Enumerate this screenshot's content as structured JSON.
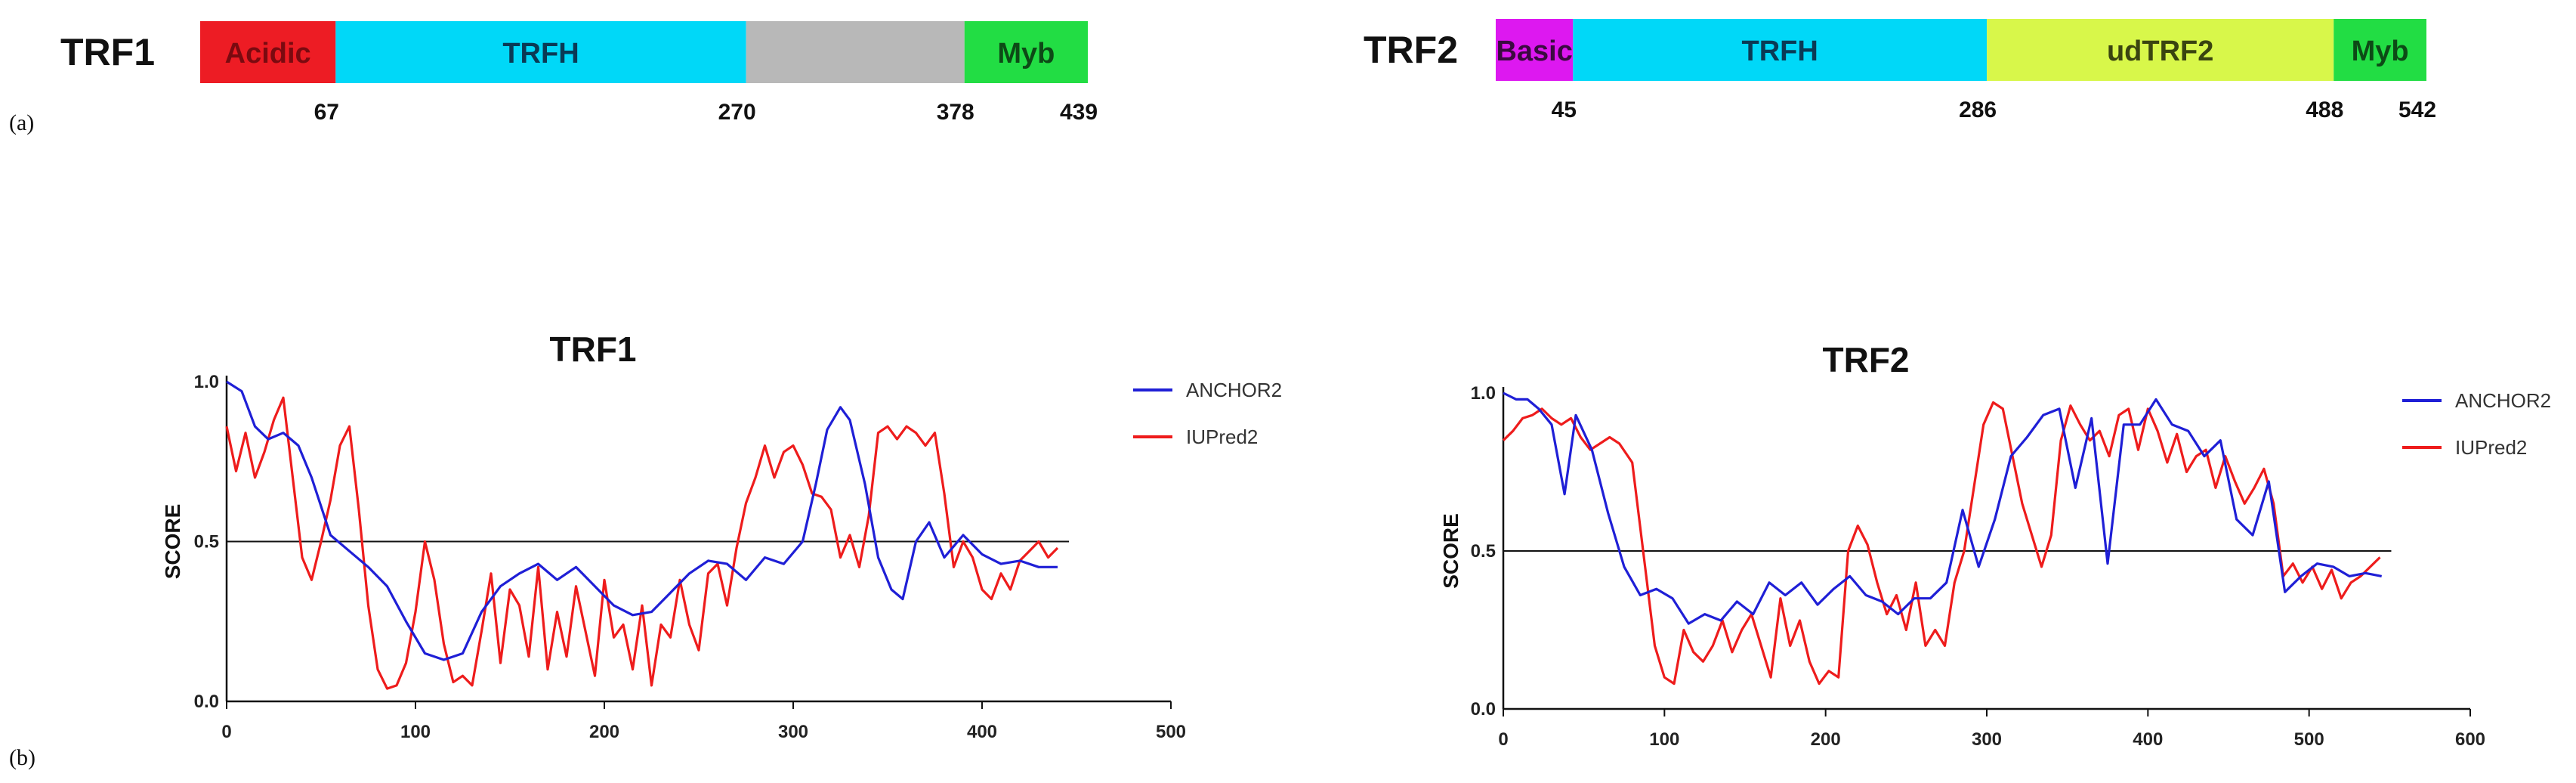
{
  "panel_labels": {
    "a": "(a)",
    "b": "(b)"
  },
  "colors": {
    "anchor": "#1f1fd6",
    "iupred": "#ee1c1c"
  },
  "domains": [
    {
      "protein": "TRF1",
      "length": 439,
      "segments": [
        {
          "label": "Acidic",
          "start": 0,
          "end": 67,
          "color": "#ed1c24",
          "text_color": "#7a0a10"
        },
        {
          "label": "TRFH",
          "start": 67,
          "end": 270,
          "color": "#00d8f8",
          "text_color": "#0a3a55"
        },
        {
          "label": "",
          "start": 270,
          "end": 378,
          "color": "#b8b8b8",
          "text_color": "#333333"
        },
        {
          "label": "Myb",
          "start": 378,
          "end": 439,
          "color": "#22dd44",
          "text_color": "#0d4a16"
        }
      ],
      "boundaries": [
        "67",
        "270",
        "378",
        "439"
      ]
    },
    {
      "protein": "TRF2",
      "length": 542,
      "segments": [
        {
          "label": "Basic",
          "start": 0,
          "end": 45,
          "color": "#dd18f0",
          "text_color": "#3a0a40"
        },
        {
          "label": "TRFH",
          "start": 45,
          "end": 286,
          "color": "#00d8f8",
          "text_color": "#0a3a55"
        },
        {
          "label": "udTRF2",
          "start": 286,
          "end": 488,
          "color": "#d8f74a",
          "text_color": "#3a4410"
        },
        {
          "label": "Myb",
          "start": 488,
          "end": 542,
          "color": "#22dd44",
          "text_color": "#0d4a16"
        }
      ],
      "boundaries": [
        "45",
        "286",
        "488",
        "542"
      ]
    }
  ],
  "chart_data": [
    {
      "type": "line",
      "title": "TRF1",
      "xlabel": "",
      "ylabel": "SCORE",
      "xlim": [
        0,
        500
      ],
      "ylim": [
        0,
        1
      ],
      "x_ticks": [
        "0",
        "100",
        "200",
        "300",
        "400",
        "500"
      ],
      "y_ticks": [
        "0.0",
        "0.5",
        "1.0"
      ],
      "threshold": 0.5,
      "legend": "top-right",
      "series": [
        {
          "name": "ANCHOR2",
          "x": [
            0,
            8,
            15,
            22,
            30,
            38,
            45,
            55,
            65,
            75,
            85,
            95,
            105,
            115,
            125,
            135,
            145,
            155,
            165,
            175,
            185,
            195,
            205,
            215,
            225,
            235,
            245,
            255,
            265,
            275,
            285,
            295,
            305,
            312,
            318,
            325,
            330,
            338,
            345,
            352,
            358,
            365,
            372,
            380,
            390,
            400,
            410,
            420,
            430,
            440
          ],
          "values": [
            1.0,
            0.97,
            0.86,
            0.82,
            0.84,
            0.8,
            0.7,
            0.52,
            0.47,
            0.42,
            0.36,
            0.25,
            0.15,
            0.13,
            0.15,
            0.28,
            0.36,
            0.4,
            0.43,
            0.38,
            0.42,
            0.36,
            0.3,
            0.27,
            0.28,
            0.34,
            0.4,
            0.44,
            0.43,
            0.38,
            0.45,
            0.43,
            0.5,
            0.68,
            0.85,
            0.92,
            0.88,
            0.68,
            0.45,
            0.35,
            0.32,
            0.5,
            0.56,
            0.45,
            0.52,
            0.46,
            0.43,
            0.44,
            0.42,
            0.42
          ]
        },
        {
          "name": "IUPred2",
          "x": [
            0,
            5,
            10,
            15,
            20,
            25,
            30,
            35,
            40,
            45,
            50,
            55,
            60,
            65,
            70,
            75,
            80,
            85,
            90,
            95,
            100,
            105,
            110,
            115,
            120,
            125,
            130,
            135,
            140,
            145,
            150,
            155,
            160,
            165,
            170,
            175,
            180,
            185,
            190,
            195,
            200,
            205,
            210,
            215,
            220,
            225,
            230,
            235,
            240,
            245,
            250,
            255,
            260,
            265,
            270,
            275,
            280,
            285,
            290,
            295,
            300,
            305,
            310,
            315,
            320,
            325,
            330,
            335,
            340,
            345,
            350,
            355,
            360,
            365,
            370,
            375,
            380,
            385,
            390,
            395,
            400,
            405,
            410,
            415,
            420,
            425,
            430,
            435,
            440
          ],
          "values": [
            0.86,
            0.72,
            0.84,
            0.7,
            0.78,
            0.88,
            0.95,
            0.7,
            0.45,
            0.38,
            0.5,
            0.63,
            0.8,
            0.86,
            0.6,
            0.3,
            0.1,
            0.04,
            0.05,
            0.12,
            0.28,
            0.5,
            0.38,
            0.18,
            0.06,
            0.08,
            0.05,
            0.22,
            0.4,
            0.12,
            0.35,
            0.3,
            0.14,
            0.42,
            0.1,
            0.28,
            0.14,
            0.36,
            0.22,
            0.08,
            0.38,
            0.2,
            0.24,
            0.1,
            0.3,
            0.05,
            0.24,
            0.2,
            0.38,
            0.24,
            0.16,
            0.4,
            0.43,
            0.3,
            0.48,
            0.62,
            0.7,
            0.8,
            0.7,
            0.78,
            0.8,
            0.74,
            0.65,
            0.64,
            0.6,
            0.45,
            0.52,
            0.42,
            0.58,
            0.84,
            0.86,
            0.82,
            0.86,
            0.84,
            0.8,
            0.84,
            0.65,
            0.42,
            0.5,
            0.45,
            0.35,
            0.32,
            0.4,
            0.35,
            0.44,
            0.47,
            0.5,
            0.45,
            0.48
          ]
        }
      ]
    },
    {
      "type": "line",
      "title": "TRF2",
      "xlabel": "",
      "ylabel": "SCORE",
      "xlim": [
        0,
        600
      ],
      "ylim": [
        0,
        1
      ],
      "x_ticks": [
        "0",
        "100",
        "200",
        "300",
        "400",
        "500",
        "600"
      ],
      "y_ticks": [
        "0.0",
        "0.5",
        "1.0"
      ],
      "threshold": 0.5,
      "legend": "top-right",
      "series": [
        {
          "name": "ANCHOR2",
          "x": [
            0,
            8,
            15,
            22,
            30,
            38,
            45,
            55,
            65,
            75,
            85,
            95,
            105,
            115,
            125,
            135,
            145,
            155,
            165,
            175,
            185,
            195,
            205,
            215,
            225,
            235,
            245,
            255,
            265,
            275,
            285,
            295,
            305,
            315,
            325,
            335,
            345,
            355,
            365,
            375,
            385,
            395,
            405,
            415,
            425,
            435,
            445,
            455,
            465,
            475,
            485,
            495,
            505,
            515,
            525,
            535,
            545
          ],
          "values": [
            1.0,
            0.98,
            0.98,
            0.95,
            0.9,
            0.68,
            0.93,
            0.82,
            0.62,
            0.45,
            0.36,
            0.38,
            0.35,
            0.27,
            0.3,
            0.28,
            0.34,
            0.3,
            0.4,
            0.36,
            0.4,
            0.33,
            0.38,
            0.42,
            0.36,
            0.34,
            0.3,
            0.35,
            0.35,
            0.4,
            0.63,
            0.45,
            0.6,
            0.8,
            0.86,
            0.93,
            0.95,
            0.7,
            0.92,
            0.46,
            0.9,
            0.9,
            0.98,
            0.9,
            0.88,
            0.8,
            0.85,
            0.6,
            0.55,
            0.72,
            0.37,
            0.42,
            0.46,
            0.45,
            0.42,
            0.43,
            0.42
          ]
        },
        {
          "name": "IUPred2",
          "x": [
            0,
            6,
            12,
            18,
            24,
            30,
            36,
            42,
            48,
            54,
            60,
            66,
            72,
            80,
            88,
            94,
            100,
            106,
            112,
            118,
            124,
            130,
            136,
            142,
            148,
            154,
            160,
            166,
            172,
            178,
            184,
            190,
            196,
            202,
            208,
            214,
            220,
            226,
            232,
            238,
            244,
            250,
            256,
            262,
            268,
            274,
            280,
            286,
            292,
            298,
            304,
            310,
            316,
            322,
            328,
            334,
            340,
            346,
            352,
            358,
            364,
            370,
            376,
            382,
            388,
            394,
            400,
            406,
            412,
            418,
            424,
            430,
            436,
            442,
            448,
            454,
            460,
            466,
            472,
            478,
            484,
            490,
            496,
            502,
            508,
            514,
            520,
            526,
            532,
            538,
            544
          ],
          "values": [
            0.85,
            0.88,
            0.92,
            0.93,
            0.95,
            0.92,
            0.9,
            0.92,
            0.86,
            0.82,
            0.84,
            0.86,
            0.84,
            0.78,
            0.45,
            0.2,
            0.1,
            0.08,
            0.25,
            0.18,
            0.15,
            0.2,
            0.28,
            0.18,
            0.25,
            0.3,
            0.2,
            0.1,
            0.35,
            0.2,
            0.28,
            0.15,
            0.08,
            0.12,
            0.1,
            0.5,
            0.58,
            0.52,
            0.4,
            0.3,
            0.36,
            0.25,
            0.4,
            0.2,
            0.25,
            0.2,
            0.4,
            0.5,
            0.7,
            0.9,
            0.97,
            0.95,
            0.8,
            0.65,
            0.55,
            0.45,
            0.55,
            0.85,
            0.96,
            0.9,
            0.85,
            0.88,
            0.8,
            0.93,
            0.95,
            0.82,
            0.95,
            0.88,
            0.78,
            0.87,
            0.75,
            0.8,
            0.82,
            0.7,
            0.8,
            0.72,
            0.65,
            0.7,
            0.76,
            0.65,
            0.42,
            0.46,
            0.4,
            0.45,
            0.38,
            0.44,
            0.35,
            0.4,
            0.42,
            0.45,
            0.48
          ]
        }
      ]
    }
  ]
}
